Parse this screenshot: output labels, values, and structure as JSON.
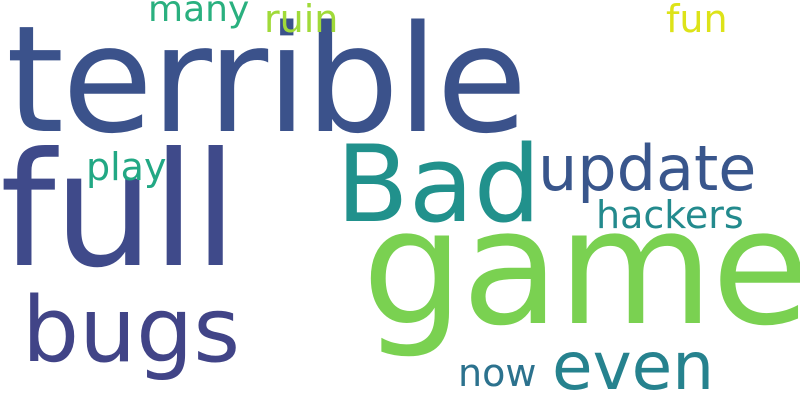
{
  "words": {
    "terrible": {
      "text": "terrible",
      "color": "#3b528b"
    },
    "full": {
      "text": "full",
      "color": "#3f4a8a"
    },
    "game": {
      "text": "game",
      "color": "#7ad151"
    },
    "bad": {
      "text": "Bad",
      "color": "#21918c"
    },
    "update": {
      "text": "update",
      "color": "#39568c"
    },
    "bugs": {
      "text": "bugs",
      "color": "#414487"
    },
    "even": {
      "text": "even",
      "color": "#26828e"
    },
    "hackers": {
      "text": "hackers",
      "color": "#238a8d"
    },
    "play": {
      "text": "play",
      "color": "#22a884"
    },
    "many": {
      "text": "many",
      "color": "#2ab07f"
    },
    "ruin": {
      "text": "ruin",
      "color": "#a0da39"
    },
    "fun": {
      "text": "fun",
      "color": "#dde318"
    },
    "now": {
      "text": "now",
      "color": "#2c728e"
    }
  }
}
